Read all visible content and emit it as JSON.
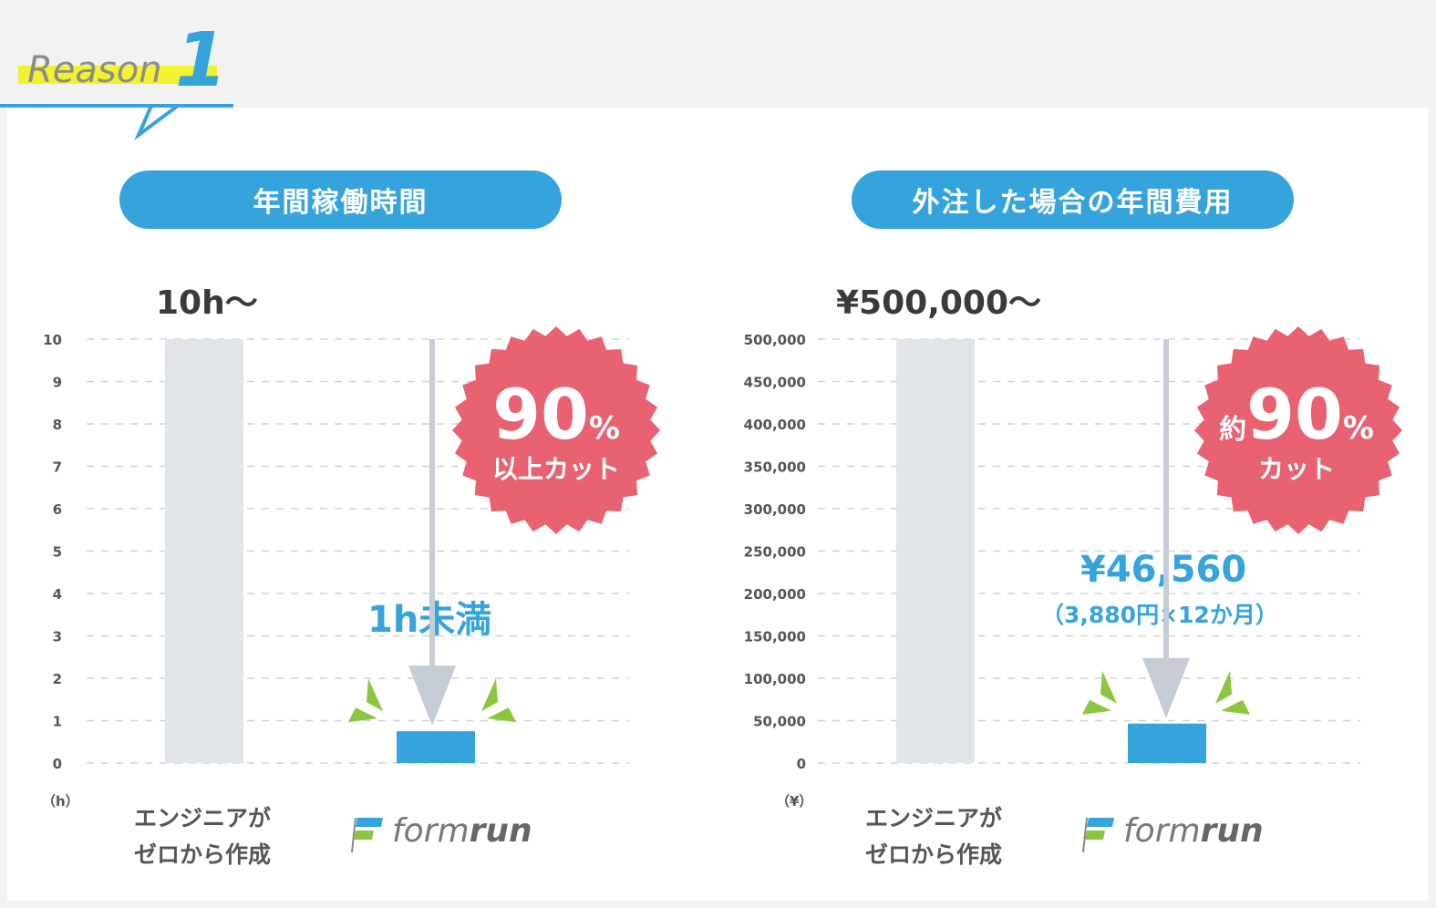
{
  "reason": {
    "word": "Reason",
    "number": "1"
  },
  "charts": [
    {
      "id": "time",
      "pill_title": "年間稼働時間",
      "top_value_label": "10h〜",
      "unit_label": "（h）",
      "result_label": "1h未満",
      "result_sub": "",
      "badge": {
        "prefix": "",
        "percent": "90",
        "percent_sign": "%",
        "sub": "以上カット"
      },
      "categories": [
        {
          "label_lines": [
            "エンジニアが",
            "ゼロから作成"
          ]
        },
        {
          "brand_prefix": "form",
          "brand_suffix": "run"
        }
      ]
    },
    {
      "id": "cost",
      "pill_title": "外注した場合の年間費用",
      "top_value_label": "¥500,000〜",
      "unit_label": "（¥）",
      "result_label": "¥46,560",
      "result_sub": "（3,880円×12か月）",
      "badge": {
        "prefix": "約",
        "percent": "90",
        "percent_sign": "%",
        "sub": "カット"
      },
      "categories": [
        {
          "label_lines": [
            "エンジニアが",
            "ゼロから作成"
          ]
        },
        {
          "brand_prefix": "form",
          "brand_suffix": "run"
        }
      ]
    }
  ],
  "chart_data": [
    {
      "type": "bar",
      "title": "年間稼働時間",
      "categories": [
        "エンジニアがゼロから作成",
        "formrun"
      ],
      "values": [
        10,
        0.75
      ],
      "ylabel": "h",
      "ylim": [
        0,
        10
      ],
      "yticks": [
        "0",
        "1",
        "2",
        "3",
        "4",
        "5",
        "6",
        "7",
        "8",
        "9",
        "10"
      ],
      "grid": true,
      "colors": [
        "#e2e5ea",
        "#36a4dc"
      ]
    },
    {
      "type": "bar",
      "title": "外注した場合の年間費用",
      "categories": [
        "エンジニアがゼロから作成",
        "formrun"
      ],
      "values": [
        500000,
        46560
      ],
      "ylabel": "¥",
      "ylim": [
        0,
        500000
      ],
      "yticks": [
        "0",
        "50,000",
        "100,000",
        "150,000",
        "200,000",
        "250,000",
        "300,000",
        "350,000",
        "400,000",
        "450,000",
        "500,000"
      ],
      "grid": true,
      "colors": [
        "#e2e5ea",
        "#36a4dc"
      ]
    }
  ],
  "colors": {
    "accent": "#36a4dc",
    "badge": "#e86272",
    "arrow": "#c5ccd6",
    "spark": "#8cc640",
    "highlight": "#f2f230",
    "bar_gray": "#e2e5ea"
  }
}
